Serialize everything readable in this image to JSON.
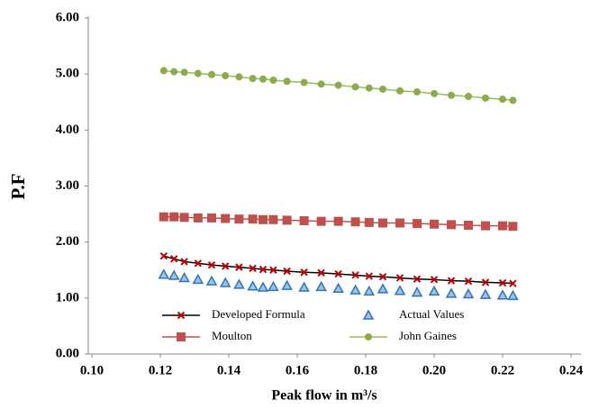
{
  "chart_data": {
    "type": "scatter",
    "xlabel": "Peak flow in m³/s",
    "ylabel": "P.F",
    "xlim": [
      0.1,
      0.24
    ],
    "ylim": [
      0,
      6
    ],
    "xticks": [
      {
        "value": 0.1,
        "label": "0.10"
      },
      {
        "value": 0.12,
        "label": "0.12"
      },
      {
        "value": 0.14,
        "label": "0.14"
      },
      {
        "value": 0.16,
        "label": "0.16"
      },
      {
        "value": 0.18,
        "label": "0.18"
      },
      {
        "value": 0.2,
        "label": "0.20"
      },
      {
        "value": 0.22,
        "label": "0.22"
      },
      {
        "value": 0.24,
        "label": "0.24"
      }
    ],
    "yticks": [
      {
        "value": 0,
        "label": "0.00"
      },
      {
        "value": 1,
        "label": "1.00"
      },
      {
        "value": 2,
        "label": "2.00"
      },
      {
        "value": 3,
        "label": "3.00"
      },
      {
        "value": 4,
        "label": "4.00"
      },
      {
        "value": 5,
        "label": "5.00"
      },
      {
        "value": 6,
        "label": "6.00"
      }
    ],
    "grid": false,
    "legend": "lower center",
    "x": [
      0.121,
      0.124,
      0.127,
      0.131,
      0.135,
      0.139,
      0.143,
      0.147,
      0.15,
      0.153,
      0.157,
      0.162,
      0.167,
      0.172,
      0.177,
      0.181,
      0.185,
      0.19,
      0.195,
      0.2,
      0.205,
      0.21,
      0.215,
      0.22,
      0.223
    ],
    "series": [
      {
        "name": "Developed Formula",
        "color": "#000000",
        "marker_color": "#c00000",
        "marker": "x",
        "line": true,
        "values": [
          1.75,
          1.7,
          1.65,
          1.62,
          1.59,
          1.57,
          1.55,
          1.53,
          1.51,
          1.5,
          1.48,
          1.46,
          1.45,
          1.43,
          1.41,
          1.39,
          1.38,
          1.36,
          1.34,
          1.33,
          1.31,
          1.3,
          1.28,
          1.27,
          1.26
        ]
      },
      {
        "name": "Actual Values",
        "color": "#2e75b6",
        "marker_color": "#2e75b6",
        "marker": "triangle",
        "line": false,
        "values": [
          1.42,
          1.4,
          1.36,
          1.33,
          1.3,
          1.27,
          1.24,
          1.21,
          1.19,
          1.2,
          1.22,
          1.19,
          1.2,
          1.17,
          1.14,
          1.12,
          1.16,
          1.13,
          1.1,
          1.12,
          1.08,
          1.07,
          1.06,
          1.05,
          1.04
        ]
      },
      {
        "name": "Moulton",
        "color": "#c0504d",
        "marker_color": "#c0504d",
        "marker": "square",
        "line": true,
        "values": [
          2.45,
          2.45,
          2.44,
          2.43,
          2.43,
          2.42,
          2.41,
          2.41,
          2.4,
          2.4,
          2.39,
          2.38,
          2.37,
          2.37,
          2.36,
          2.35,
          2.34,
          2.34,
          2.33,
          2.32,
          2.31,
          2.3,
          2.29,
          2.29,
          2.28
        ]
      },
      {
        "name": "John Gaines",
        "color": "#9bbb59",
        "marker_color": "#8cab4a",
        "marker": "circle",
        "line": true,
        "values": [
          5.06,
          5.04,
          5.03,
          5.01,
          4.99,
          4.97,
          4.95,
          4.92,
          4.91,
          4.89,
          4.87,
          4.85,
          4.82,
          4.8,
          4.77,
          4.75,
          4.73,
          4.7,
          4.68,
          4.65,
          4.62,
          4.6,
          4.57,
          4.55,
          4.53
        ]
      }
    ]
  }
}
